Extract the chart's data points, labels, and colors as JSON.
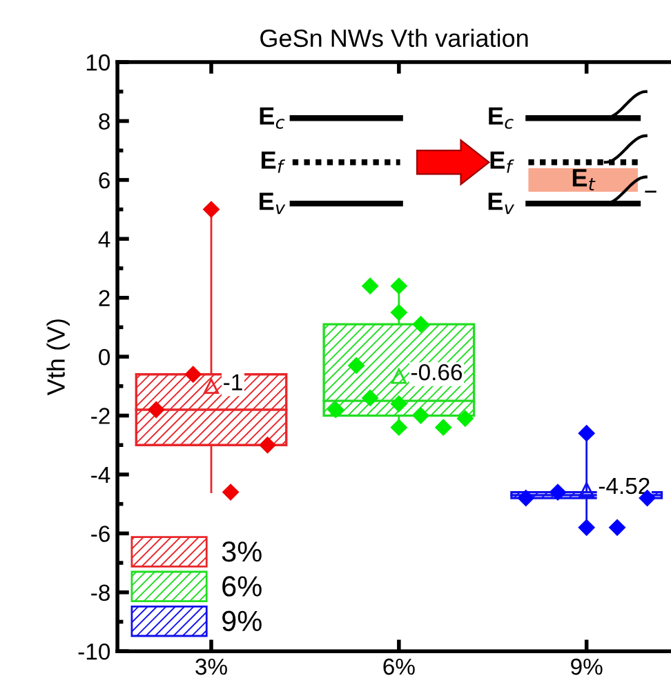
{
  "chart_data": {
    "type": "box",
    "title": "GeSn NWs Vth variation",
    "ylabel": "Vth (V)",
    "xlim": [
      1.5,
      10.35
    ],
    "xticks": [
      {
        "value": 3,
        "label": "3%"
      },
      {
        "value": 6,
        "label": "6%"
      },
      {
        "value": 9,
        "label": "9%"
      }
    ],
    "ylim": [
      -10,
      10
    ],
    "yticks": [
      -10,
      -8,
      -6,
      -4,
      -2,
      0,
      2,
      4,
      6,
      8,
      10
    ],
    "grid": false,
    "legend": "bottom left",
    "series": [
      {
        "name": "3%",
        "color": "#e8262a",
        "x": [
          3
        ],
        "boxes": [
          {
            "low": -4.6,
            "q1": -3.0,
            "median": -1.8,
            "q3": -0.6,
            "high": 5.0,
            "mean": -1
          }
        ]
      },
      {
        "name": "6%",
        "color": "#22dd22",
        "x": [
          6
        ],
        "boxes": [
          {
            "low": -2.4,
            "q1": -2.0,
            "median": -1.5,
            "q3": 1.1,
            "high": 2.4,
            "mean": -0.66
          }
        ]
      },
      {
        "name": "9%",
        "color": "#1010ee",
        "x": [
          9
        ],
        "boxes": [
          {
            "low": -5.8,
            "q1": -4.8,
            "median": -4.7,
            "q3": -4.6,
            "high": -2.6,
            "mean": -4.52
          }
        ]
      },
      {
        "type": "scatter",
        "color": "#f00000",
        "x": [
          2.71,
          2.12,
          3.9,
          3.31,
          3.0
        ],
        "values": [
          -0.6,
          -1.8,
          -3.0,
          -4.6,
          5.0
        ]
      },
      {
        "type": "scatter",
        "color": "#00ee00",
        "x": [
          5.54,
          6.0,
          6.0,
          6.35,
          5.32,
          4.99,
          5.54,
          6.0,
          6.35,
          6.0,
          6.71,
          7.06
        ],
        "values": [
          2.4,
          2.4,
          1.5,
          1.1,
          -0.3,
          -1.8,
          -1.4,
          -1.6,
          -2.0,
          -2.4,
          -2.4,
          -2.1
        ]
      },
      {
        "type": "scatter",
        "color": "#0000ff",
        "x": [
          8.03,
          8.54,
          9.0,
          9.97,
          9.0,
          9.49
        ],
        "values": [
          -4.8,
          -4.6,
          -2.6,
          -4.8,
          -5.8,
          -5.8
        ]
      }
    ],
    "marker": "diamond",
    "annotations": [
      "-1",
      "-0.66",
      "-4.52",
      "E$_{c}$",
      "E$_{f}$",
      "E$_{v}$",
      "E$_{c}$",
      "E$_{f}$",
      "E$_{v}$",
      "E$_{t}$"
    ]
  }
}
